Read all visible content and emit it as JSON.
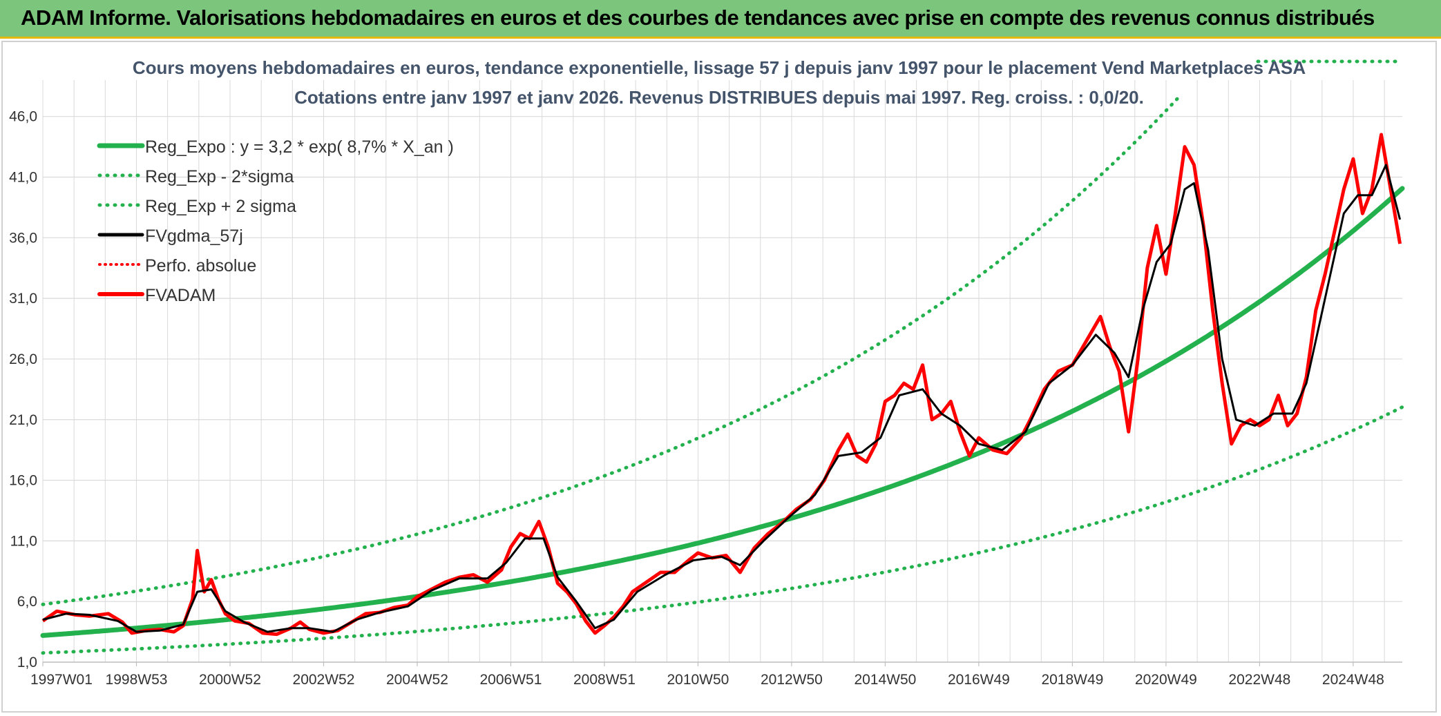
{
  "banner": {
    "title": "ADAM Informe. Valorisations hebdomadaires en euros et des courbes de tendances avec prise en compte des revenus connus distribués"
  },
  "colors": {
    "banner_bg": "#7cc57c",
    "trend": "#22b14c",
    "price": "#ff0000",
    "smooth": "#000000",
    "grid": "#d9d9d9"
  },
  "chart_data": {
    "type": "line",
    "title_line1": "Cours moyens hebdomadaires en euros, tendance exponentielle, lissage 57 j depuis janv 1997 pour le placement Vend Marketplaces ASA",
    "title_line2": "Cotations entre janv 1997 et janv 2026. Revenus DISTRIBUES depuis mai 1997. Reg. croiss. : 0,0/20.",
    "x_range": [
      1997.0,
      2026.05
    ],
    "ylim": [
      1.0,
      49.0
    ],
    "y_ticks": [
      "1,0",
      "6,0",
      "11,0",
      "16,0",
      "21,0",
      "26,0",
      "31,0",
      "36,0",
      "41,0",
      "46,0"
    ],
    "y_tick_values": [
      1,
      6,
      11,
      16,
      21,
      26,
      31,
      36,
      41,
      46
    ],
    "x_ticks": [
      "1997W01",
      "1998W53",
      "2000W52",
      "2002W52",
      "2004W52",
      "2006W51",
      "2008W51",
      "2010W50",
      "2012W50",
      "2014W50",
      "2016W49",
      "2018W49",
      "2020W49",
      "2022W48",
      "2024W48"
    ],
    "x_tick_values": [
      1997.0,
      1999.0,
      2001.0,
      2003.0,
      2005.0,
      2007.0,
      2009.0,
      2011.0,
      2013.0,
      2015.0,
      2017.0,
      2019.0,
      2021.0,
      2023.0,
      2025.0
    ],
    "trend": {
      "a": 3.2,
      "rate": 0.087,
      "start_year": 1997.0,
      "upper_factor": 1.8,
      "lower_factor": 0.55
    },
    "legend": [
      {
        "label": "Reg_Expo : y = 3,2 * exp( 8,7% *  X_an )",
        "style": "trend"
      },
      {
        "label": "Reg_Exp - 2*sigma",
        "style": "lower"
      },
      {
        "label": "Reg_Exp + 2 sigma",
        "style": "upper"
      },
      {
        "label": "FVgdma_57j",
        "style": "smooth"
      },
      {
        "label": "Perfo. absolue",
        "style": "perfo"
      },
      {
        "label": "FVADAM",
        "style": "price"
      }
    ],
    "series": [
      {
        "name": "FVADAM",
        "points": [
          [
            1997.0,
            4.4
          ],
          [
            1997.3,
            5.2
          ],
          [
            1997.7,
            4.9
          ],
          [
            1998.0,
            4.8
          ],
          [
            1998.4,
            5.0
          ],
          [
            1998.7,
            4.3
          ],
          [
            1998.9,
            3.4
          ],
          [
            1999.2,
            3.6
          ],
          [
            1999.5,
            3.7
          ],
          [
            1999.8,
            3.5
          ],
          [
            2000.0,
            4.0
          ],
          [
            2000.2,
            6.2
          ],
          [
            2000.3,
            10.2
          ],
          [
            2000.45,
            6.8
          ],
          [
            2000.6,
            7.8
          ],
          [
            2000.75,
            6.2
          ],
          [
            2000.9,
            5.0
          ],
          [
            2001.1,
            4.4
          ],
          [
            2001.4,
            4.2
          ],
          [
            2001.7,
            3.4
          ],
          [
            2002.0,
            3.3
          ],
          [
            2002.3,
            3.8
          ],
          [
            2002.5,
            4.3
          ],
          [
            2002.7,
            3.7
          ],
          [
            2003.0,
            3.4
          ],
          [
            2003.3,
            3.6
          ],
          [
            2003.6,
            4.3
          ],
          [
            2003.9,
            5.0
          ],
          [
            2004.2,
            5.1
          ],
          [
            2004.5,
            5.5
          ],
          [
            2004.8,
            5.7
          ],
          [
            2005.0,
            6.4
          ],
          [
            2005.3,
            7.0
          ],
          [
            2005.6,
            7.6
          ],
          [
            2005.9,
            8.0
          ],
          [
            2006.2,
            8.2
          ],
          [
            2006.5,
            7.6
          ],
          [
            2006.8,
            8.6
          ],
          [
            2007.0,
            10.5
          ],
          [
            2007.2,
            11.6
          ],
          [
            2007.4,
            11.2
          ],
          [
            2007.6,
            12.6
          ],
          [
            2007.8,
            10.5
          ],
          [
            2008.0,
            7.5
          ],
          [
            2008.2,
            6.8
          ],
          [
            2008.4,
            5.8
          ],
          [
            2008.6,
            4.4
          ],
          [
            2008.8,
            3.4
          ],
          [
            2009.0,
            4.0
          ],
          [
            2009.2,
            4.7
          ],
          [
            2009.4,
            5.6
          ],
          [
            2009.6,
            6.8
          ],
          [
            2009.9,
            7.6
          ],
          [
            2010.2,
            8.4
          ],
          [
            2010.5,
            8.4
          ],
          [
            2010.8,
            9.4
          ],
          [
            2011.0,
            10.0
          ],
          [
            2011.3,
            9.6
          ],
          [
            2011.6,
            9.8
          ],
          [
            2011.9,
            8.4
          ],
          [
            2012.2,
            10.4
          ],
          [
            2012.5,
            11.6
          ],
          [
            2012.8,
            12.5
          ],
          [
            2013.1,
            13.6
          ],
          [
            2013.4,
            14.4
          ],
          [
            2013.7,
            16.0
          ],
          [
            2014.0,
            18.5
          ],
          [
            2014.2,
            19.8
          ],
          [
            2014.4,
            18.0
          ],
          [
            2014.6,
            17.5
          ],
          [
            2014.8,
            19.0
          ],
          [
            2015.0,
            22.5
          ],
          [
            2015.2,
            23.0
          ],
          [
            2015.4,
            24.0
          ],
          [
            2015.6,
            23.5
          ],
          [
            2015.8,
            25.5
          ],
          [
            2016.0,
            21.0
          ],
          [
            2016.2,
            21.5
          ],
          [
            2016.4,
            22.5
          ],
          [
            2016.6,
            20.0
          ],
          [
            2016.8,
            18.0
          ],
          [
            2017.0,
            19.5
          ],
          [
            2017.3,
            18.5
          ],
          [
            2017.6,
            18.2
          ],
          [
            2017.9,
            19.5
          ],
          [
            2018.1,
            21.0
          ],
          [
            2018.4,
            23.5
          ],
          [
            2018.7,
            25.0
          ],
          [
            2019.0,
            25.5
          ],
          [
            2019.3,
            27.5
          ],
          [
            2019.6,
            29.5
          ],
          [
            2019.8,
            27.0
          ],
          [
            2020.0,
            25.0
          ],
          [
            2020.2,
            20.0
          ],
          [
            2020.4,
            26.0
          ],
          [
            2020.6,
            33.5
          ],
          [
            2020.8,
            37.0
          ],
          [
            2021.0,
            33.0
          ],
          [
            2021.2,
            38.0
          ],
          [
            2021.4,
            43.5
          ],
          [
            2021.6,
            42.0
          ],
          [
            2021.8,
            37.0
          ],
          [
            2022.0,
            30.0
          ],
          [
            2022.2,
            24.0
          ],
          [
            2022.4,
            19.0
          ],
          [
            2022.6,
            20.5
          ],
          [
            2022.8,
            21.0
          ],
          [
            2023.0,
            20.5
          ],
          [
            2023.2,
            21.0
          ],
          [
            2023.4,
            23.0
          ],
          [
            2023.6,
            20.5
          ],
          [
            2023.8,
            21.5
          ],
          [
            2024.0,
            24.5
          ],
          [
            2024.2,
            30.0
          ],
          [
            2024.4,
            33.0
          ],
          [
            2024.6,
            36.5
          ],
          [
            2024.8,
            40.0
          ],
          [
            2025.0,
            42.5
          ],
          [
            2025.2,
            38.0
          ],
          [
            2025.4,
            40.0
          ],
          [
            2025.6,
            44.5
          ],
          [
            2025.8,
            40.0
          ],
          [
            2026.0,
            35.5
          ]
        ]
      },
      {
        "name": "FVgdma_57j",
        "points": [
          [
            1997.0,
            4.5
          ],
          [
            1997.5,
            5.0
          ],
          [
            1998.0,
            4.9
          ],
          [
            1998.6,
            4.4
          ],
          [
            1999.0,
            3.5
          ],
          [
            1999.5,
            3.6
          ],
          [
            2000.0,
            4.1
          ],
          [
            2000.3,
            6.8
          ],
          [
            2000.6,
            7.0
          ],
          [
            2000.9,
            5.2
          ],
          [
            2001.3,
            4.3
          ],
          [
            2001.8,
            3.5
          ],
          [
            2002.3,
            3.8
          ],
          [
            2002.7,
            3.8
          ],
          [
            2003.2,
            3.5
          ],
          [
            2003.7,
            4.5
          ],
          [
            2004.2,
            5.1
          ],
          [
            2004.8,
            5.6
          ],
          [
            2005.3,
            6.9
          ],
          [
            2005.9,
            7.9
          ],
          [
            2006.5,
            7.9
          ],
          [
            2006.9,
            9.2
          ],
          [
            2007.3,
            11.2
          ],
          [
            2007.7,
            11.2
          ],
          [
            2008.0,
            8.0
          ],
          [
            2008.4,
            6.0
          ],
          [
            2008.8,
            3.8
          ],
          [
            2009.2,
            4.5
          ],
          [
            2009.7,
            6.8
          ],
          [
            2010.3,
            8.2
          ],
          [
            2010.9,
            9.4
          ],
          [
            2011.5,
            9.7
          ],
          [
            2011.9,
            9.0
          ],
          [
            2012.4,
            11.0
          ],
          [
            2012.9,
            12.8
          ],
          [
            2013.5,
            14.8
          ],
          [
            2014.0,
            18.0
          ],
          [
            2014.5,
            18.3
          ],
          [
            2014.9,
            19.5
          ],
          [
            2015.3,
            23.0
          ],
          [
            2015.8,
            23.5
          ],
          [
            2016.2,
            21.5
          ],
          [
            2016.6,
            20.5
          ],
          [
            2017.0,
            19.0
          ],
          [
            2017.5,
            18.5
          ],
          [
            2018.0,
            20.0
          ],
          [
            2018.5,
            24.0
          ],
          [
            2019.0,
            25.5
          ],
          [
            2019.5,
            28.0
          ],
          [
            2019.9,
            26.5
          ],
          [
            2020.2,
            24.5
          ],
          [
            2020.5,
            30.0
          ],
          [
            2020.8,
            34.0
          ],
          [
            2021.1,
            35.5
          ],
          [
            2021.4,
            40.0
          ],
          [
            2021.6,
            40.5
          ],
          [
            2021.9,
            35.0
          ],
          [
            2022.2,
            26.0
          ],
          [
            2022.5,
            21.0
          ],
          [
            2022.9,
            20.5
          ],
          [
            2023.3,
            21.5
          ],
          [
            2023.7,
            21.5
          ],
          [
            2024.0,
            24.0
          ],
          [
            2024.4,
            31.0
          ],
          [
            2024.8,
            38.0
          ],
          [
            2025.1,
            39.5
          ],
          [
            2025.4,
            39.5
          ],
          [
            2025.7,
            42.0
          ],
          [
            2026.0,
            37.5
          ]
        ]
      }
    ]
  }
}
